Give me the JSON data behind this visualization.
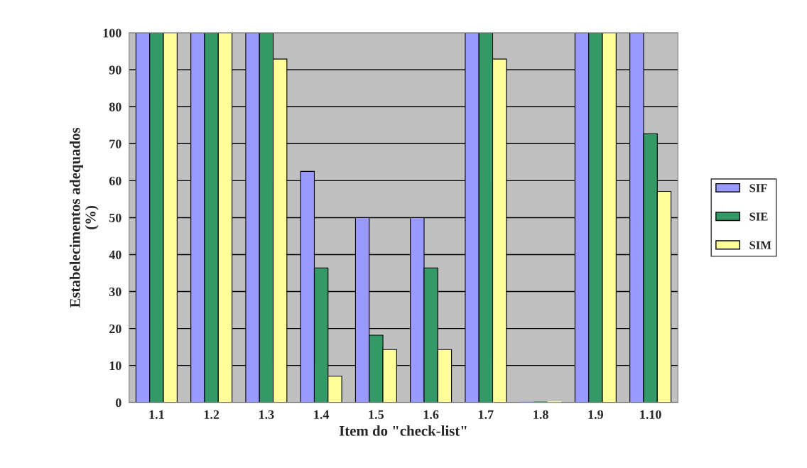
{
  "chart_data": {
    "type": "bar",
    "xlabel": "Item do \"check-list\"",
    "ylabel": "Estabelecimentos adequados\n(%)",
    "categories": [
      "1.1",
      "1.2",
      "1.3",
      "1.4",
      "1.5",
      "1.6",
      "1.7",
      "1.8",
      "1.9",
      "1.10"
    ],
    "series": [
      {
        "name": "SIF",
        "color": "#9999ff",
        "values": [
          100,
          100,
          100,
          62.5,
          50,
          50,
          100,
          0,
          100,
          100
        ]
      },
      {
        "name": "SIE",
        "color": "#339966",
        "values": [
          100,
          100,
          100,
          36.4,
          18.2,
          36.4,
          100,
          0,
          100,
          72.7
        ]
      },
      {
        "name": "SIM",
        "color": "#ffff99",
        "values": [
          100,
          100,
          92.9,
          7.1,
          14.3,
          14.3,
          92.9,
          0,
          100,
          57.1
        ]
      }
    ],
    "ylim": [
      0,
      100
    ],
    "yticks": [
      0,
      10,
      20,
      30,
      40,
      50,
      60,
      70,
      80,
      90,
      100
    ],
    "grid": "y",
    "legend": "right"
  }
}
